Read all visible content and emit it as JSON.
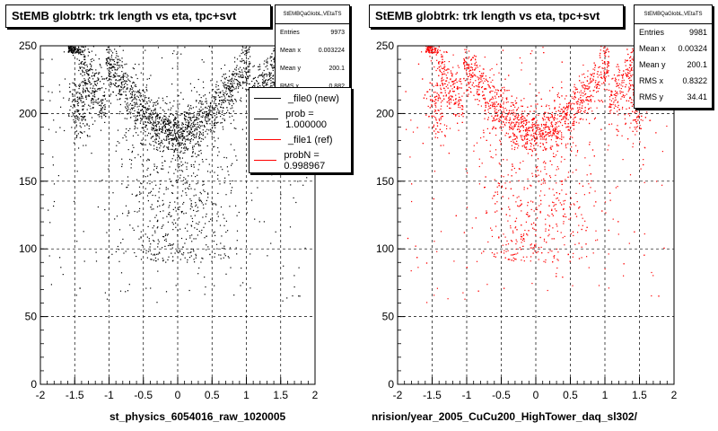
{
  "chart_data": [
    {
      "type": "scatter",
      "title": "StEMB globtrk: trk length vs eta, tpc+svt",
      "xlabel": "st_physics_6054016_raw_1020005",
      "ylabel": "",
      "xlim": [
        -2,
        2
      ],
      "ylim": [
        0,
        250
      ],
      "x_ticks": [
        "-2",
        "-1.5",
        "-1",
        "-0.5",
        "0",
        "0.5",
        "1",
        "1.5",
        "2"
      ],
      "y_ticks": [
        "0",
        "50",
        "100",
        "150",
        "200",
        "250"
      ],
      "grid": true,
      "marker_color": "#000000",
      "stats": {
        "header": "StEMBQaGlobL,VEtaTS",
        "entries_label": "Entries",
        "entries": "9973",
        "mean_label": "Mean x",
        "mean": "0.003224",
        "meany_label": "Mean y",
        "meany": "200.1",
        "rms_label": "RMS x",
        "rms": "0.882"
      },
      "legend": {
        "placement": "top-right",
        "entries": [
          {
            "label": "_file0 (new)",
            "color": "#000000"
          },
          {
            "label": "prob = 1.000000",
            "color": "#000000"
          },
          {
            "label": "_file1 (ref)",
            "color": "#ff0000"
          },
          {
            "label": "probN = 0.998967",
            "color": "#ff0000"
          }
        ]
      }
    },
    {
      "type": "scatter",
      "title": "StEMB globtrk: trk length vs eta, tpc+svt",
      "xlabel": "nrision/year_2005_CuCu200_HighTower_daq_sl302/",
      "ylabel": "",
      "xlim": [
        -2,
        2
      ],
      "ylim": [
        0,
        250
      ],
      "x_ticks": [
        "-2",
        "-1.5",
        "-1",
        "-0.5",
        "0",
        "0.5",
        "1",
        "1.5",
        "2"
      ],
      "y_ticks": [
        "0",
        "50",
        "100",
        "150",
        "200",
        "250"
      ],
      "grid": true,
      "marker_color": "#ff0000",
      "stats": {
        "header": "StEMBQaGlobL,VEtaTS",
        "entries_label": "Entries",
        "entries": "9981",
        "mean_label": "Mean x",
        "mean": "0.00324",
        "meany_label": "Mean y",
        "meany": "200.1",
        "rms_label": "RMS x",
        "rms": "0.8322",
        "rmsy_label": "RMS y",
        "rmsy": "34.41"
      }
    }
  ]
}
